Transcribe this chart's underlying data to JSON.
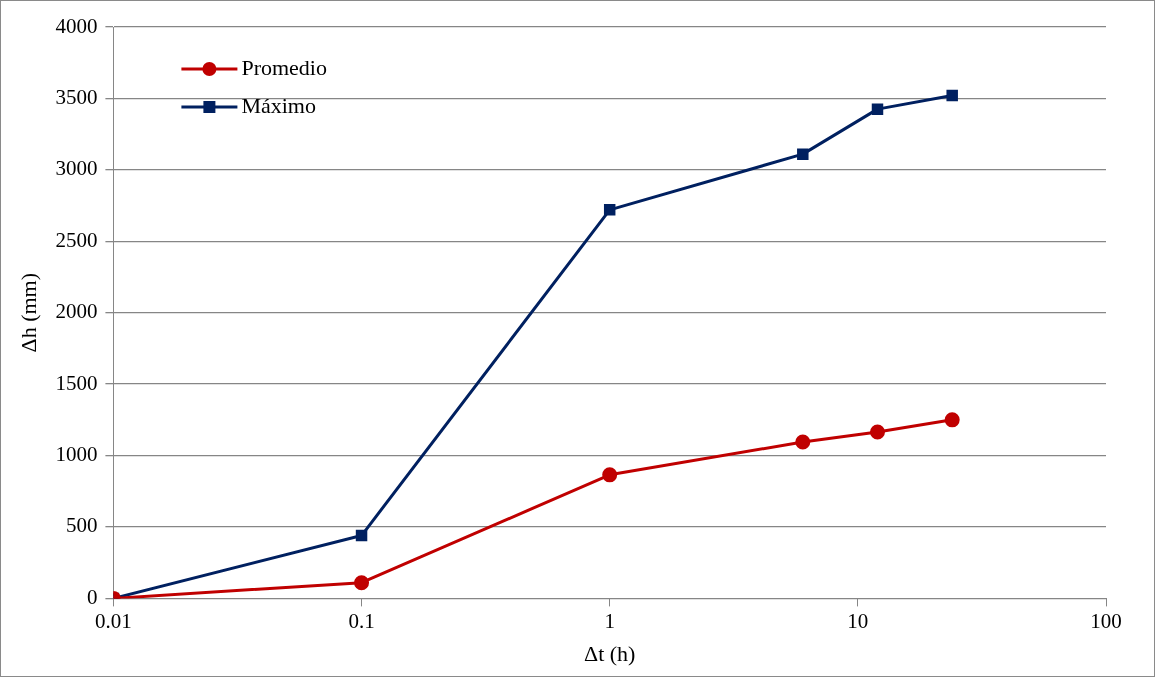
{
  "chart_data": {
    "type": "line",
    "xlabel": "Δt (h)",
    "ylabel": "Δh (mm)",
    "log": "x",
    "xlim": [
      0.01,
      100
    ],
    "xticks": [
      0.01,
      0.1,
      1,
      10,
      100
    ],
    "ylim": [
      0,
      4000
    ],
    "yticks": [
      0,
      500,
      1000,
      1500,
      2000,
      2500,
      3000,
      3500,
      4000
    ],
    "grid": "y",
    "legend": "top left",
    "line_style": "solid",
    "series": [
      {
        "name": "Promedio",
        "color": "#c00000",
        "marker": "circle",
        "x": [
          0.01,
          0.1,
          1,
          6,
          12,
          24
        ],
        "values": [
          0,
          110,
          865,
          1095,
          1165,
          1250
        ]
      },
      {
        "name": "Máximo",
        "color": "#002060",
        "marker": "square",
        "x": [
          0.01,
          0.1,
          1,
          6,
          12,
          24
        ],
        "values": [
          0,
          440,
          2720,
          3110,
          3425,
          3520
        ]
      }
    ]
  }
}
